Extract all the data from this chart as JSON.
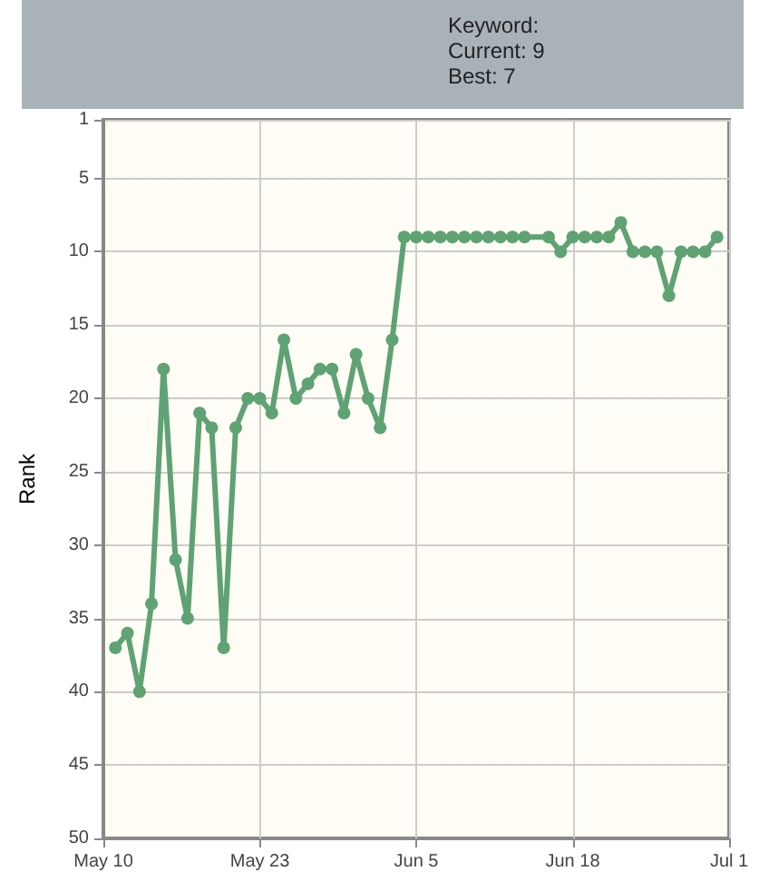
{
  "chart_data": {
    "type": "line",
    "ylabel": "Rank",
    "annotations": [
      "Keyword:",
      "Current: 9",
      "Best: 7"
    ],
    "x": [
      "--05-11",
      "--05-12",
      "--05-13",
      "--05-14",
      "--05-15",
      "--05-16",
      "--05-17",
      "--05-18",
      "--05-19",
      "--05-20",
      "--05-21",
      "--05-22",
      "--05-23",
      "--05-24",
      "--05-25",
      "--05-26",
      "--05-27",
      "--05-28",
      "--05-29",
      "--05-30",
      "--05-31",
      "--06-01",
      "--06-02",
      "--06-03",
      "--06-04",
      "--06-05",
      "--06-06",
      "--06-07",
      "--06-08",
      "--06-09",
      "--06-10",
      "--06-11",
      "--06-12",
      "--06-13",
      "--06-14",
      "--06-16",
      "--06-17",
      "--06-18",
      "--06-19",
      "--06-20",
      "--06-21",
      "--06-22",
      "--06-23",
      "--06-24",
      "--06-25",
      "--06-26",
      "--06-27",
      "--06-28",
      "--06-29",
      "--06-30"
    ],
    "series": [
      {
        "color": "#5fa274",
        "values": [
          37,
          36,
          40,
          34,
          18,
          31,
          35,
          21,
          22,
          37,
          22,
          20,
          20,
          21,
          16,
          20,
          19,
          18,
          18,
          21,
          17,
          20,
          22,
          16,
          9,
          9,
          9,
          9,
          9,
          9,
          9,
          9,
          9,
          9,
          9,
          9,
          10,
          9,
          9,
          9,
          9,
          8,
          10,
          10,
          10,
          13,
          10,
          10,
          10,
          9
        ]
      }
    ],
    "xlim": [
      "--05-10",
      "--07-01"
    ],
    "xticks": [
      {
        "value": "--05-10",
        "label": "May 10"
      },
      {
        "value": "--05-23",
        "label": "May 23"
      },
      {
        "value": "--06-05",
        "label": "Jun 5"
      },
      {
        "value": "--06-18",
        "label": "Jun 18"
      },
      {
        "value": "--07-01",
        "label": "Jul 1"
      }
    ],
    "ylim": [
      50,
      1
    ],
    "yticks": [
      1,
      5,
      10,
      15,
      20,
      25,
      30,
      35,
      40,
      45,
      50
    ],
    "grid": true,
    "marker": "circle",
    "line_style": "solid"
  }
}
